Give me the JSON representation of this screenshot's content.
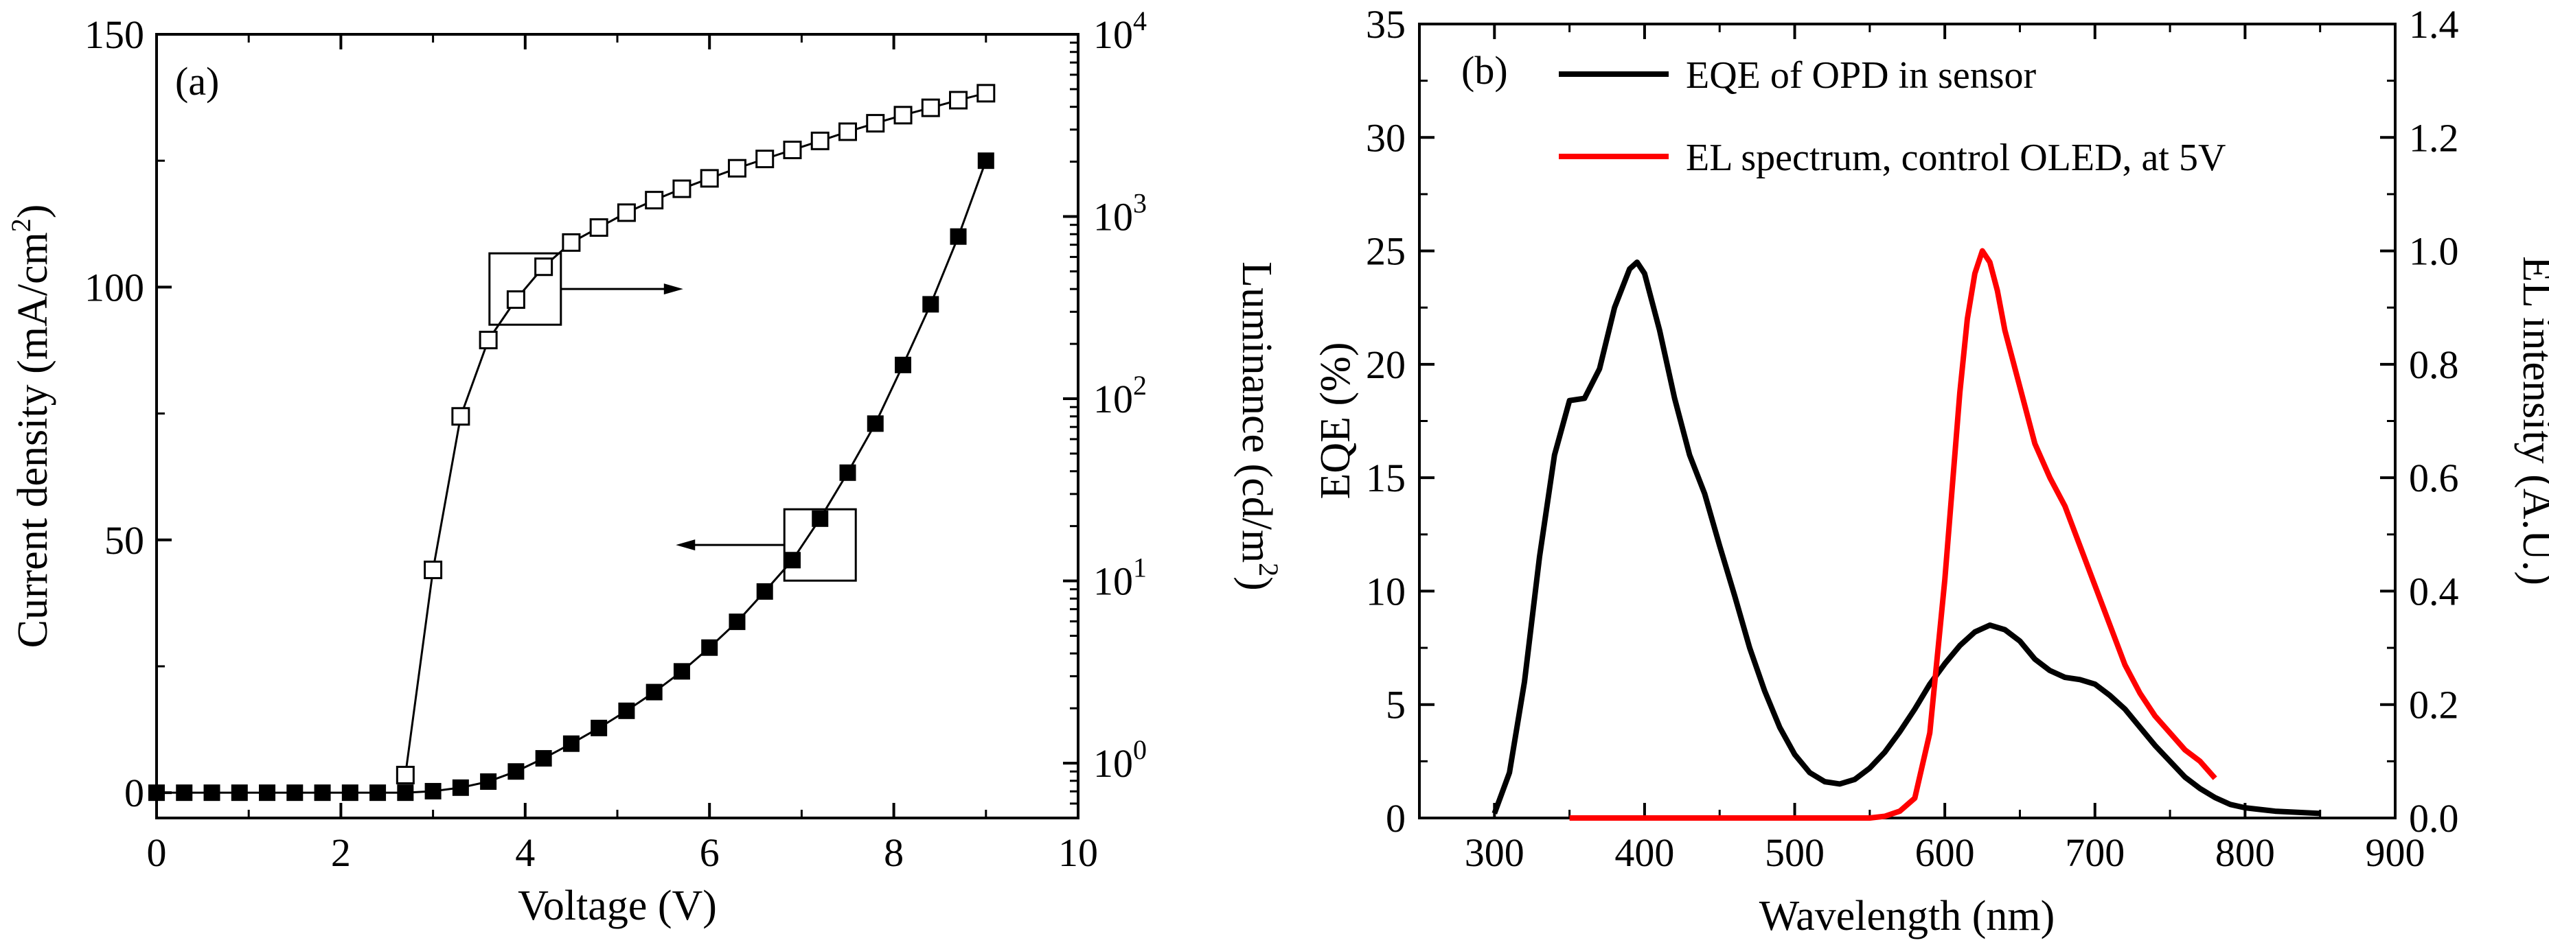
{
  "chart_data": [
    {
      "panel": "(a)",
      "type": "scatter",
      "xlabel": "Voltage (V)",
      "ylabel_left": "Current density (mA/cm",
      "ylabel_left_sup": "2",
      "ylabel_left_suffix": ")",
      "ylabel_right": "Luminance (cd/m",
      "ylabel_right_sup": "2",
      "ylabel_right_suffix": ")",
      "xlim": [
        0,
        10
      ],
      "ylim_left": [
        -5,
        150
      ],
      "ylim_right_log": [
        0.5,
        10000
      ],
      "x_ticks": [
        "0",
        "2",
        "4",
        "6",
        "8",
        "10"
      ],
      "y_left_ticks": [
        "0",
        "50",
        "100",
        "150"
      ],
      "y_right_ticks": [
        {
          "base": "10",
          "exp": "0",
          "value": 1
        },
        {
          "base": "10",
          "exp": "1",
          "value": 10
        },
        {
          "base": "10",
          "exp": "2",
          "value": 100
        },
        {
          "base": "10",
          "exp": "3",
          "value": 1000
        },
        {
          "base": "10",
          "exp": "4",
          "value": 10000
        }
      ],
      "series": [
        {
          "name": "Current density",
          "axis": "left",
          "marker": "filled-square",
          "x": [
            0.0,
            0.3,
            0.6,
            0.9,
            1.2,
            1.5,
            1.8,
            2.1,
            2.4,
            2.7,
            3.0,
            3.3,
            3.6,
            3.9,
            4.2,
            4.5,
            4.8,
            5.1,
            5.4,
            5.7,
            6.0,
            6.3,
            6.6,
            6.9,
            7.2,
            7.5,
            7.8,
            8.1,
            8.4,
            8.7,
            9.0
          ],
          "y": [
            0,
            0,
            0,
            0,
            0,
            0,
            0,
            0,
            0,
            0,
            0.3,
            1.0,
            2.2,
            4.2,
            6.8,
            9.7,
            12.8,
            16.2,
            19.9,
            24.0,
            28.7,
            33.8,
            39.8,
            46.0,
            54.2,
            63.3,
            73.0,
            84.6,
            96.6,
            110.0,
            125.0
          ]
        },
        {
          "name": "Luminance",
          "axis": "right",
          "marker": "open-square",
          "x": [
            2.7,
            3.0,
            3.3,
            3.6,
            3.9,
            4.2,
            4.5,
            4.8,
            5.1,
            5.4,
            5.7,
            6.0,
            6.3,
            6.6,
            6.9,
            7.2,
            7.5,
            7.8,
            8.1,
            8.4,
            8.7,
            9.0
          ],
          "y": [
            0.86,
            11.5,
            80,
            210,
            350,
            530,
            720,
            870,
            1050,
            1230,
            1420,
            1620,
            1840,
            2070,
            2320,
            2600,
            2920,
            3250,
            3600,
            3950,
            4350,
            4750
          ]
        }
      ],
      "annotations": [
        {
          "box_center_data": [
            4.0,
            400
          ],
          "axis": "right",
          "arrow": "right"
        },
        {
          "box_center_data": [
            7.2,
            49
          ],
          "axis": "left",
          "arrow": "left"
        }
      ]
    },
    {
      "panel": "(b)",
      "type": "line",
      "xlabel": "Wavelength (nm)",
      "ylabel_left": "EQE (%)",
      "ylabel_right": "EL intensity (A.U.)",
      "xlim": [
        250,
        900
      ],
      "ylim_left": [
        0,
        35
      ],
      "ylim_right": [
        0,
        1.4
      ],
      "x_ticks": [
        "300",
        "400",
        "500",
        "600",
        "700",
        "800",
        "900"
      ],
      "y_left_ticks": [
        "0",
        "5",
        "10",
        "15",
        "20",
        "25",
        "30",
        "35"
      ],
      "y_right_ticks": [
        "0.0",
        "0.2",
        "0.4",
        "0.6",
        "0.8",
        "1.0",
        "1.2",
        "1.4"
      ],
      "series": [
        {
          "name": "EQE of OPD in sensor",
          "axis": "left",
          "color": "#000000",
          "x": [
            300,
            310,
            320,
            330,
            340,
            350,
            360,
            370,
            380,
            390,
            395,
            400,
            410,
            420,
            430,
            440,
            450,
            460,
            470,
            480,
            490,
            500,
            510,
            520,
            530,
            540,
            550,
            560,
            570,
            580,
            590,
            600,
            610,
            620,
            630,
            640,
            650,
            660,
            670,
            680,
            690,
            700,
            710,
            720,
            730,
            740,
            750,
            760,
            770,
            780,
            790,
            800,
            820,
            850
          ],
          "y": [
            0.2,
            2.0,
            6.0,
            11.5,
            16.0,
            18.4,
            18.5,
            19.8,
            22.5,
            24.2,
            24.5,
            24.0,
            21.5,
            18.5,
            16.0,
            14.3,
            12.0,
            9.8,
            7.5,
            5.6,
            4.0,
            2.8,
            2.0,
            1.6,
            1.5,
            1.7,
            2.2,
            2.9,
            3.8,
            4.8,
            5.9,
            6.8,
            7.6,
            8.2,
            8.5,
            8.3,
            7.8,
            7.0,
            6.5,
            6.2,
            6.1,
            5.9,
            5.4,
            4.8,
            4.0,
            3.2,
            2.5,
            1.8,
            1.3,
            0.9,
            0.6,
            0.45,
            0.3,
            0.2
          ]
        },
        {
          "name": "EL spectrum, control OLED, at 5V",
          "axis": "right",
          "color": "#ff0000",
          "x": [
            350,
            400,
            450,
            500,
            550,
            560,
            570,
            580,
            590,
            600,
            610,
            615,
            620,
            625,
            630,
            635,
            640,
            650,
            660,
            670,
            680,
            690,
            700,
            710,
            720,
            730,
            740,
            750,
            760,
            770,
            780
          ],
          "y": [
            0.0,
            0.0,
            0.0,
            0.0,
            0.0,
            0.003,
            0.012,
            0.035,
            0.15,
            0.42,
            0.75,
            0.88,
            0.96,
            1.0,
            0.98,
            0.93,
            0.86,
            0.76,
            0.66,
            0.6,
            0.55,
            0.48,
            0.41,
            0.34,
            0.27,
            0.22,
            0.18,
            0.15,
            0.12,
            0.1,
            0.07
          ]
        }
      ]
    }
  ]
}
